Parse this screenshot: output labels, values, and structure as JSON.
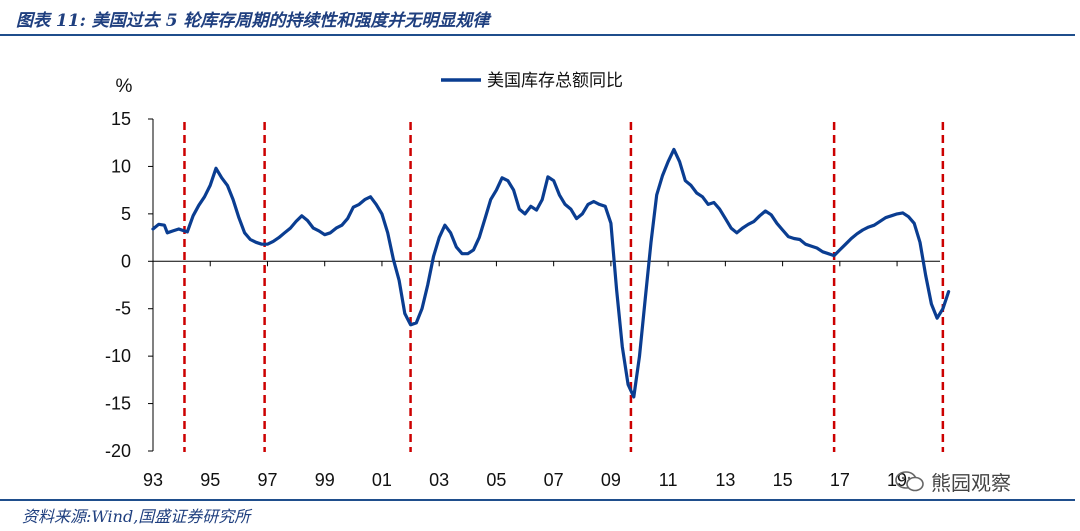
{
  "figure": {
    "title": "图表 11:  美国过去 5 轮库存周期的持续性和强度并无明显规律",
    "source": "资料来源:Wind,国盛证券研究所",
    "watermark": "熊园观察",
    "watermark_icon": "wechat-icon"
  },
  "chart_data": {
    "type": "line",
    "title": "",
    "unit_label": "%",
    "xlabel": "",
    "ylabel": "%",
    "ylim": [
      -20,
      15
    ],
    "yticks": [
      15,
      10,
      5,
      0,
      -5,
      -10,
      -15,
      -20
    ],
    "xlim": [
      1993.0,
      2020.5
    ],
    "xtick_values": [
      1993,
      1995,
      1997,
      1999,
      2001,
      2003,
      2005,
      2007,
      2009,
      2011,
      2013,
      2015,
      2017,
      2019
    ],
    "xtick_labels": [
      "93",
      "95",
      "97",
      "99",
      "01",
      "03",
      "05",
      "07",
      "09",
      "11",
      "13",
      "15",
      "17",
      "19"
    ],
    "grid": false,
    "legend_position": "top-center",
    "line_color": "#0a3d91",
    "series": [
      {
        "name": "美国库存总额同比",
        "color": "#0a3d91",
        "points": [
          [
            1993.0,
            3.4
          ],
          [
            1993.2,
            3.9
          ],
          [
            1993.4,
            3.8
          ],
          [
            1993.5,
            3.0
          ],
          [
            1993.7,
            3.2
          ],
          [
            1993.9,
            3.4
          ],
          [
            1994.0,
            3.3
          ],
          [
            1994.2,
            3.1
          ],
          [
            1994.4,
            4.8
          ],
          [
            1994.6,
            5.9
          ],
          [
            1994.8,
            6.8
          ],
          [
            1995.0,
            8.0
          ],
          [
            1995.2,
            9.8
          ],
          [
            1995.4,
            8.8
          ],
          [
            1995.6,
            8.0
          ],
          [
            1995.8,
            6.5
          ],
          [
            1996.0,
            4.6
          ],
          [
            1996.2,
            3.0
          ],
          [
            1996.4,
            2.3
          ],
          [
            1996.6,
            2.0
          ],
          [
            1996.8,
            1.8
          ],
          [
            1997.0,
            1.8
          ],
          [
            1997.2,
            2.1
          ],
          [
            1997.4,
            2.5
          ],
          [
            1997.6,
            3.0
          ],
          [
            1997.8,
            3.5
          ],
          [
            1998.0,
            4.2
          ],
          [
            1998.2,
            4.8
          ],
          [
            1998.4,
            4.3
          ],
          [
            1998.6,
            3.5
          ],
          [
            1998.8,
            3.2
          ],
          [
            1999.0,
            2.8
          ],
          [
            1999.2,
            3.0
          ],
          [
            1999.4,
            3.5
          ],
          [
            1999.6,
            3.8
          ],
          [
            1999.8,
            4.5
          ],
          [
            2000.0,
            5.7
          ],
          [
            2000.2,
            6.0
          ],
          [
            2000.4,
            6.5
          ],
          [
            2000.6,
            6.8
          ],
          [
            2000.8,
            6.0
          ],
          [
            2001.0,
            5.0
          ],
          [
            2001.2,
            3.0
          ],
          [
            2001.4,
            0.2
          ],
          [
            2001.6,
            -2.0
          ],
          [
            2001.8,
            -5.5
          ],
          [
            2002.0,
            -6.7
          ],
          [
            2002.2,
            -6.5
          ],
          [
            2002.4,
            -5.0
          ],
          [
            2002.6,
            -2.5
          ],
          [
            2002.8,
            0.5
          ],
          [
            2003.0,
            2.5
          ],
          [
            2003.2,
            3.8
          ],
          [
            2003.4,
            3.0
          ],
          [
            2003.6,
            1.5
          ],
          [
            2003.8,
            0.8
          ],
          [
            2004.0,
            0.8
          ],
          [
            2004.2,
            1.2
          ],
          [
            2004.4,
            2.5
          ],
          [
            2004.6,
            4.5
          ],
          [
            2004.8,
            6.5
          ],
          [
            2005.0,
            7.5
          ],
          [
            2005.2,
            8.8
          ],
          [
            2005.4,
            8.5
          ],
          [
            2005.6,
            7.5
          ],
          [
            2005.8,
            5.5
          ],
          [
            2006.0,
            5.0
          ],
          [
            2006.2,
            5.8
          ],
          [
            2006.4,
            5.4
          ],
          [
            2006.6,
            6.5
          ],
          [
            2006.8,
            8.9
          ],
          [
            2007.0,
            8.5
          ],
          [
            2007.2,
            7.0
          ],
          [
            2007.4,
            6.0
          ],
          [
            2007.6,
            5.5
          ],
          [
            2007.8,
            4.5
          ],
          [
            2008.0,
            5.0
          ],
          [
            2008.2,
            6.0
          ],
          [
            2008.4,
            6.3
          ],
          [
            2008.6,
            6.0
          ],
          [
            2008.8,
            5.8
          ],
          [
            2009.0,
            4.0
          ],
          [
            2009.2,
            -3.0
          ],
          [
            2009.4,
            -9.0
          ],
          [
            2009.6,
            -13.0
          ],
          [
            2009.8,
            -14.3
          ],
          [
            2010.0,
            -10.0
          ],
          [
            2010.2,
            -4.0
          ],
          [
            2010.4,
            2.0
          ],
          [
            2010.6,
            7.0
          ],
          [
            2010.8,
            9.0
          ],
          [
            2011.0,
            10.5
          ],
          [
            2011.2,
            11.8
          ],
          [
            2011.4,
            10.5
          ],
          [
            2011.6,
            8.5
          ],
          [
            2011.8,
            8.0
          ],
          [
            2012.0,
            7.2
          ],
          [
            2012.2,
            6.8
          ],
          [
            2012.4,
            6.0
          ],
          [
            2012.6,
            6.2
          ],
          [
            2012.8,
            5.5
          ],
          [
            2013.0,
            4.5
          ],
          [
            2013.2,
            3.5
          ],
          [
            2013.4,
            3.0
          ],
          [
            2013.6,
            3.5
          ],
          [
            2013.8,
            3.9
          ],
          [
            2014.0,
            4.2
          ],
          [
            2014.2,
            4.8
          ],
          [
            2014.4,
            5.3
          ],
          [
            2014.6,
            4.9
          ],
          [
            2014.8,
            4.0
          ],
          [
            2015.0,
            3.3
          ],
          [
            2015.2,
            2.6
          ],
          [
            2015.4,
            2.4
          ],
          [
            2015.6,
            2.3
          ],
          [
            2015.8,
            1.8
          ],
          [
            2016.0,
            1.6
          ],
          [
            2016.2,
            1.4
          ],
          [
            2016.4,
            1.0
          ],
          [
            2016.6,
            0.8
          ],
          [
            2016.8,
            0.6
          ],
          [
            2017.0,
            1.2
          ],
          [
            2017.2,
            1.8
          ],
          [
            2017.4,
            2.4
          ],
          [
            2017.6,
            2.9
          ],
          [
            2017.8,
            3.3
          ],
          [
            2018.0,
            3.6
          ],
          [
            2018.2,
            3.8
          ],
          [
            2018.4,
            4.2
          ],
          [
            2018.6,
            4.6
          ],
          [
            2018.8,
            4.8
          ],
          [
            2019.0,
            5.0
          ],
          [
            2019.2,
            5.1
          ],
          [
            2019.4,
            4.7
          ],
          [
            2019.6,
            4.0
          ],
          [
            2019.8,
            2.0
          ],
          [
            2020.0,
            -1.5
          ],
          [
            2020.2,
            -4.5
          ],
          [
            2020.4,
            -6.0
          ],
          [
            2020.6,
            -5.0
          ],
          [
            2020.8,
            -3.2
          ]
        ]
      }
    ],
    "markers": {
      "style": "dashed-vertical-line",
      "color": "#cc0000",
      "x": [
        1994.1,
        1996.9,
        2002.0,
        2009.7,
        2016.8,
        2020.6
      ]
    }
  }
}
